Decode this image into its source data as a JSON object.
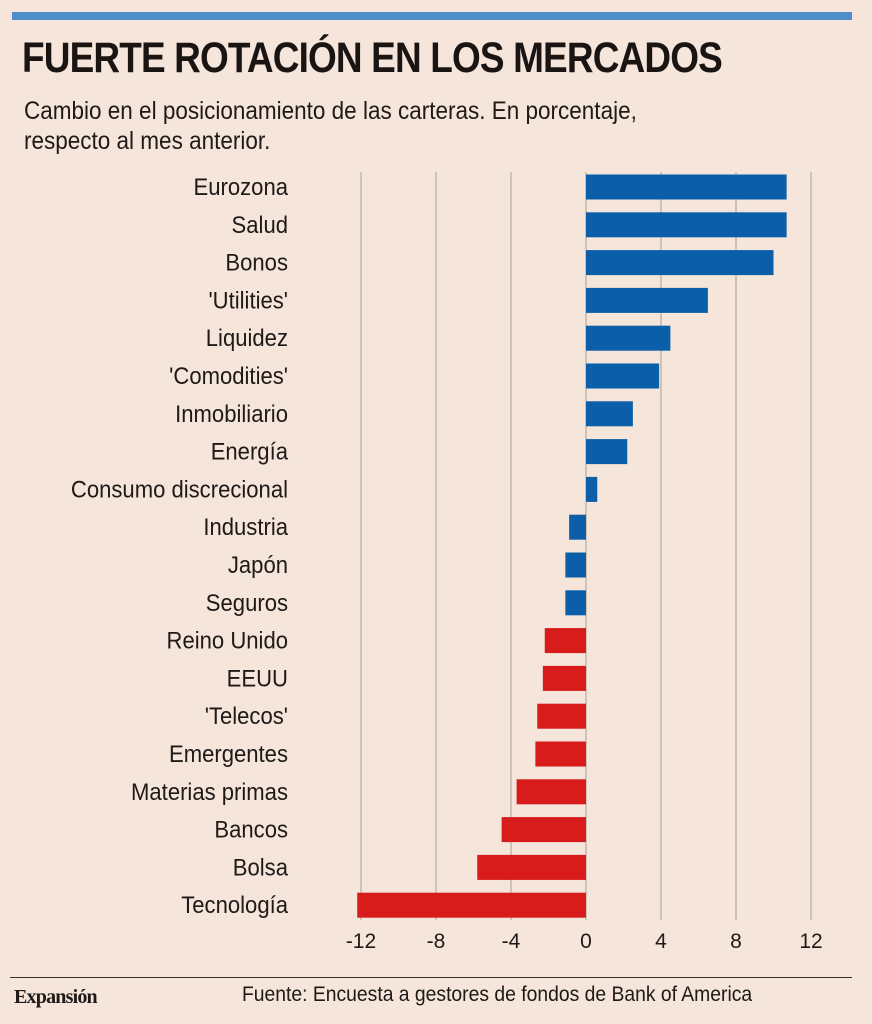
{
  "header": {
    "title": "FUERTE ROTACIÓN EN LOS MERCADOS",
    "subtitle_line1": "Cambio en el posicionamiento de las carteras. En porcentaje,",
    "subtitle_line2": "respecto al mes anterior."
  },
  "footer": {
    "brand": "Expansión",
    "source": "Fuente:  Encuesta a gestores de fondos de Bank of America"
  },
  "colors": {
    "positive": "#0a5fa8",
    "negative": "#d81b1b",
    "accent_bar": "#4f8ec6",
    "background": "#f5e5da",
    "grid": "#b9aba2"
  },
  "chart_data": {
    "type": "bar",
    "orientation": "horizontal",
    "title": "FUERTE ROTACIÓN EN LOS MERCADOS",
    "subtitle": "Cambio en el posicionamiento de las carteras. En porcentaje, respecto al mes anterior.",
    "xlabel": "",
    "ylabel": "",
    "xlim": [
      -12.5,
      12.5
    ],
    "xticks": [
      -12,
      -8,
      -4,
      0,
      4,
      8,
      12
    ],
    "xtick_labels": [
      "-12",
      "-8",
      "-4",
      "0",
      "4",
      "8",
      "12"
    ],
    "grid": "vertical",
    "categories": [
      "Eurozona",
      "Salud",
      "Bonos",
      "'Utilities'",
      "Liquidez",
      "'Comodities'",
      "Inmobiliario",
      "Energía",
      "Consumo discrecional",
      "Industria",
      "Japón",
      "Seguros",
      "Reino Unido",
      "EEUU",
      "'Telecos'",
      "Emergentes",
      "Materias primas",
      "Bancos",
      "Bolsa",
      "Tecnología"
    ],
    "values": [
      10.7,
      10.7,
      10.0,
      6.5,
      4.5,
      3.9,
      2.5,
      2.2,
      0.6,
      -0.9,
      -1.1,
      -1.1,
      -2.2,
      -2.3,
      -2.6,
      -2.7,
      -3.7,
      -4.5,
      -5.8,
      -12.2
    ],
    "bar_colors": [
      "blue",
      "blue",
      "blue",
      "blue",
      "blue",
      "blue",
      "blue",
      "blue",
      "blue",
      "blue",
      "blue",
      "blue",
      "red",
      "red",
      "red",
      "red",
      "red",
      "red",
      "red",
      "red"
    ],
    "source": "Encuesta a gestores de fondos de Bank of America"
  }
}
